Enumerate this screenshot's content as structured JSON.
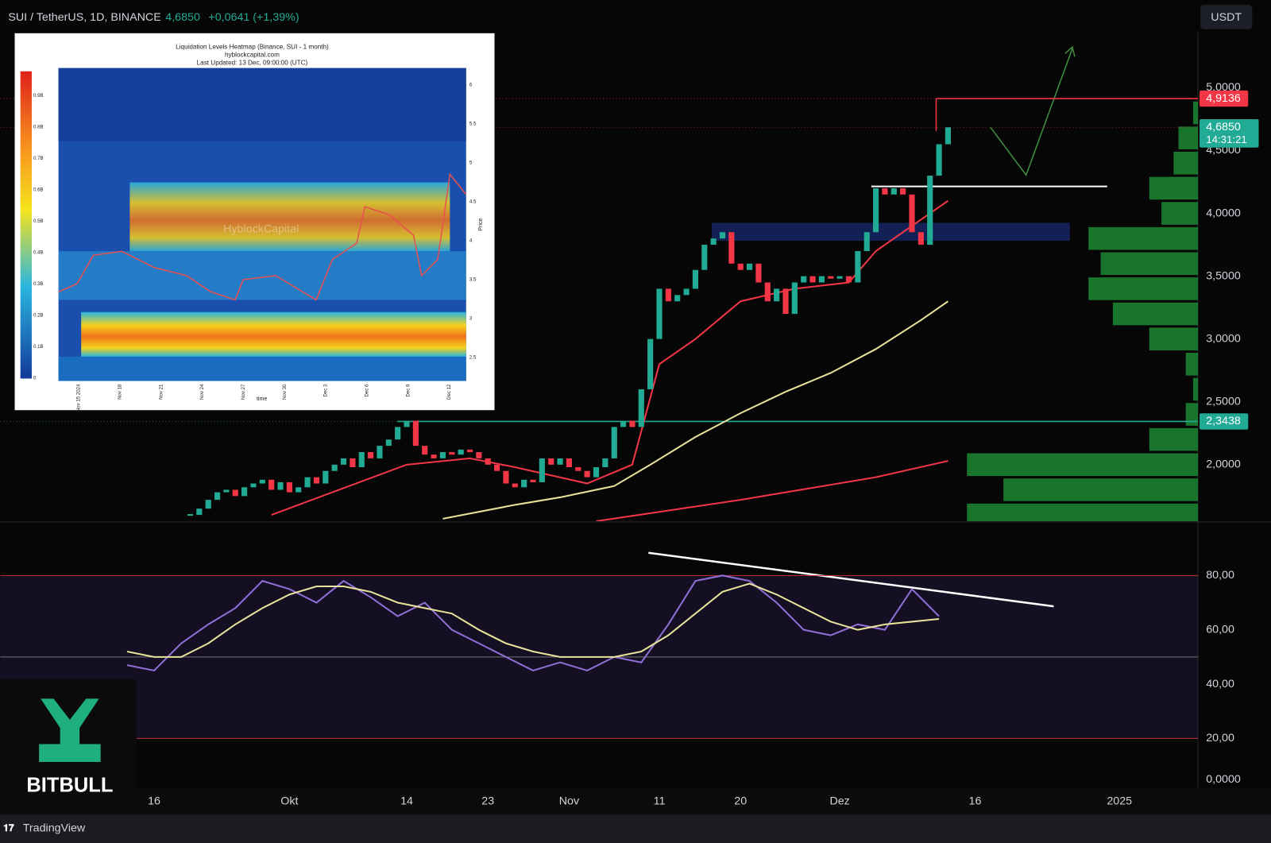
{
  "header": {
    "symbol": "SUI / TetherUS, 1D, BINANCE",
    "price": "4,6850",
    "change": "+0,0641 (+1,39%)",
    "currency": "USDT"
  },
  "chart_data": [
    {
      "type": "candlestick",
      "up_color": "#22ab94",
      "down_color": "#f23645",
      "x": [
        19,
        20,
        21,
        22,
        23,
        24,
        25,
        26,
        27,
        28,
        29,
        30,
        31,
        32,
        33,
        34,
        35,
        36,
        37,
        38,
        39,
        40,
        41,
        42,
        43,
        44,
        45,
        46,
        47,
        48,
        49,
        50,
        51,
        52,
        53,
        54,
        55,
        56,
        57,
        58,
        59,
        60,
        61,
        62,
        63,
        64,
        65,
        66,
        67,
        68,
        69,
        70,
        71,
        72,
        73,
        74,
        75,
        76,
        77,
        78,
        79,
        80,
        81,
        82,
        83,
        84,
        85,
        86,
        87,
        88,
        89,
        90,
        91,
        92,
        93,
        94,
        95,
        96,
        97,
        98,
        99,
        100,
        101,
        102,
        103
      ],
      "values": [
        1.6,
        1.65,
        1.72,
        1.78,
        1.8,
        1.75,
        1.82,
        1.85,
        1.88,
        1.8,
        1.86,
        1.78,
        1.82,
        1.9,
        1.85,
        1.95,
        2.0,
        2.05,
        1.98,
        2.1,
        2.05,
        2.15,
        2.2,
        2.3,
        2.35,
        2.15,
        2.08,
        2.05,
        2.1,
        2.08,
        2.12,
        2.1,
        2.05,
        2.0,
        1.95,
        1.85,
        1.82,
        1.88,
        1.86,
        2.05,
        2.0,
        2.05,
        1.98,
        1.95,
        1.9,
        1.98,
        2.05,
        2.3,
        2.35,
        2.3,
        2.6,
        3.0,
        3.4,
        3.3,
        3.35,
        3.4,
        3.55,
        3.75,
        3.8,
        3.85,
        3.6,
        3.55,
        3.6,
        3.45,
        3.3,
        3.4,
        3.2,
        3.45,
        3.5,
        3.45,
        3.5,
        3.48,
        3.5,
        3.45,
        3.7,
        3.85,
        4.2,
        4.15,
        4.2,
        4.15,
        3.85,
        3.75,
        4.3,
        4.55,
        4.685
      ],
      "series": [
        {
          "color": "#e8e29a",
          "x": [
            47,
            55,
            60,
            66,
            70,
            75,
            80,
            85,
            90,
            95,
            100,
            103
          ],
          "values": [
            1.57,
            1.68,
            1.74,
            1.83,
            2.0,
            2.22,
            2.41,
            2.58,
            2.73,
            2.92,
            3.15,
            3.3
          ]
        },
        {
          "color": "#f23645",
          "x": [
            64,
            80,
            95,
            103
          ],
          "values": [
            1.55,
            1.72,
            1.9,
            2.03
          ]
        },
        {
          "color": "#f23645",
          "x": [
            28,
            43,
            50,
            55,
            63,
            68,
            71,
            75,
            80,
            86,
            92,
            95,
            99,
            103
          ],
          "values": [
            1.6,
            2.0,
            2.05,
            1.98,
            1.85,
            2.0,
            2.8,
            3.0,
            3.3,
            3.4,
            3.45,
            3.7,
            3.9,
            4.1
          ]
        }
      ],
      "levels": [
        {
          "value": 4.9136,
          "label": "4,9136",
          "color": "#f23645"
        },
        {
          "value": 2.3438,
          "label": "2,3438",
          "color": "#22ab94"
        }
      ],
      "last": {
        "value": 4.685,
        "label": "4,6850",
        "countdown": "14:31:21",
        "color": "#22ab94"
      },
      "volume_profile": {
        "color": "#1e8a34",
        "prices": [
          1.6,
          1.8,
          2.0,
          2.2,
          2.4,
          2.6,
          2.8,
          3.0,
          3.2,
          3.4,
          3.6,
          3.8,
          4.0,
          4.2,
          4.4,
          4.6,
          4.8
        ],
        "values": [
          95,
          80,
          95,
          20,
          5,
          2,
          5,
          20,
          35,
          45,
          40,
          45,
          15,
          20,
          10,
          8,
          2
        ]
      },
      "xlim": [
        -2.07,
        130.7
      ],
      "ylim": [
        1.55,
        5.44
      ],
      "xticks": [
        {
          "value": 15,
          "label": "16"
        },
        {
          "value": 30,
          "label": "Okt"
        },
        {
          "value": 43,
          "label": "14"
        },
        {
          "value": 52,
          "label": "23"
        },
        {
          "value": 61,
          "label": "Nov"
        },
        {
          "value": 71,
          "label": "11"
        },
        {
          "value": 80,
          "label": "20"
        },
        {
          "value": 91,
          "label": "Dez"
        },
        {
          "value": 106,
          "label": "16"
        },
        {
          "value": 122,
          "label": "2025"
        }
      ],
      "yticks": [
        {
          "value": 5,
          "label": "5,0000"
        },
        {
          "value": 4.5,
          "label": "4,5000"
        },
        {
          "value": 4,
          "label": "4,0000"
        },
        {
          "value": 3.5,
          "label": "3,5000"
        },
        {
          "value": 3,
          "label": "3,0000"
        },
        {
          "value": 2.5,
          "label": "2,5000"
        },
        {
          "value": 2,
          "label": "2,0000"
        }
      ]
    },
    {
      "type": "line",
      "x": [
        12,
        15,
        18,
        21,
        24,
        27,
        30,
        33,
        36,
        39,
        42,
        45,
        48,
        51,
        54,
        57,
        60,
        63,
        66,
        69,
        72,
        75,
        78,
        81,
        84,
        87,
        90,
        93,
        96,
        99,
        102
      ],
      "series": [
        {
          "color": "#8f6fd6",
          "values": [
            47,
            45,
            55,
            62,
            68,
            78,
            75,
            70,
            78,
            72,
            65,
            70,
            60,
            55,
            50,
            45,
            48,
            45,
            50,
            48,
            62,
            78,
            80,
            78,
            70,
            60,
            58,
            62,
            60,
            75,
            65
          ]
        },
        {
          "color": "#e8e29a",
          "values": [
            52,
            50,
            50,
            55,
            62,
            68,
            73,
            76,
            76,
            74,
            70,
            68,
            66,
            60,
            55,
            52,
            50,
            50,
            50,
            52,
            58,
            66,
            74,
            77,
            73,
            68,
            63,
            60,
            62,
            63,
            64
          ]
        }
      ],
      "levels": [
        {
          "value": 80,
          "color": "#c2353a"
        },
        {
          "value": 50,
          "color": "#777777"
        },
        {
          "value": 20,
          "color": "#c2353a"
        }
      ],
      "ylim": [
        0,
        99.4
      ],
      "yticks": [
        {
          "value": 80,
          "label": "80,00"
        },
        {
          "value": 60,
          "label": "60,00"
        },
        {
          "value": 40,
          "label": "40,00"
        },
        {
          "value": 20,
          "label": "20,00"
        },
        {
          "value": 0,
          "label": "0,0000"
        }
      ]
    }
  ],
  "heatmap_inset": {
    "title": "Liquidation Levels Heatmap (Binance, SUI - 1 month)",
    "site": "hyblockcapital.com",
    "updated": "Last Updated: 13 Dec, 09:00:00 (UTC)",
    "watermark": "HyblockCapital",
    "colorbar": [
      "0.9B",
      "0.8B",
      "0.7B",
      "0.6B",
      "0.5B",
      "0.4B",
      "0.3B",
      "0.2B",
      "0.1B",
      "0"
    ],
    "prices": [
      "6",
      "5.5",
      "5",
      "4.5",
      "4",
      "3.5",
      "3",
      "2.5"
    ],
    "price_label": "Price",
    "dates": [
      "Nov 15 2024",
      "Nov 18",
      "Nov 21",
      "Nov 24",
      "Nov 27",
      "Nov 30",
      "Dec 3",
      "Dec 6",
      "Dec 9",
      "Dec 12"
    ],
    "time_label": "time"
  },
  "logo": "BITBULL",
  "footer": "TradingView"
}
